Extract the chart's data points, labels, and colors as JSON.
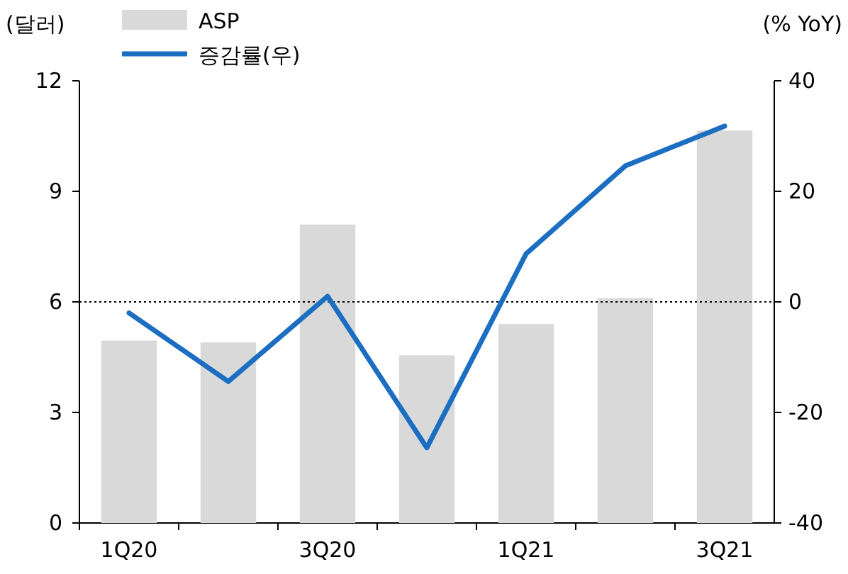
{
  "chart_data": {
    "type": "bar",
    "ylabel": "(달러)",
    "y2label": "(% YoY)",
    "categories": [
      "1Q20",
      null,
      "3Q20",
      null,
      "1Q21",
      null,
      "3Q21"
    ],
    "series": [
      {
        "name": "ASP",
        "color": "#d9d9d9",
        "values": [
          4.95,
          4.9,
          8.1,
          4.55,
          5.4,
          6.1,
          10.65
        ]
      },
      {
        "name": "증감률(우)",
        "type": "line",
        "axis": "y2",
        "color": "#1b6ec2",
        "values": [
          -2,
          -14.4,
          1,
          -26.4,
          8.7,
          24.6,
          31.8
        ]
      }
    ],
    "ylim": [
      0,
      12
    ],
    "yticks": [
      0,
      3,
      6,
      9,
      12
    ],
    "y2lim": [
      -40,
      40
    ],
    "y2ticks": [
      -40,
      -20,
      0,
      20,
      40
    ],
    "ref_lines": [
      {
        "axis": "y",
        "value": 6,
        "color": "#000000",
        "line_style": "dotted"
      }
    ],
    "legend": "top"
  }
}
